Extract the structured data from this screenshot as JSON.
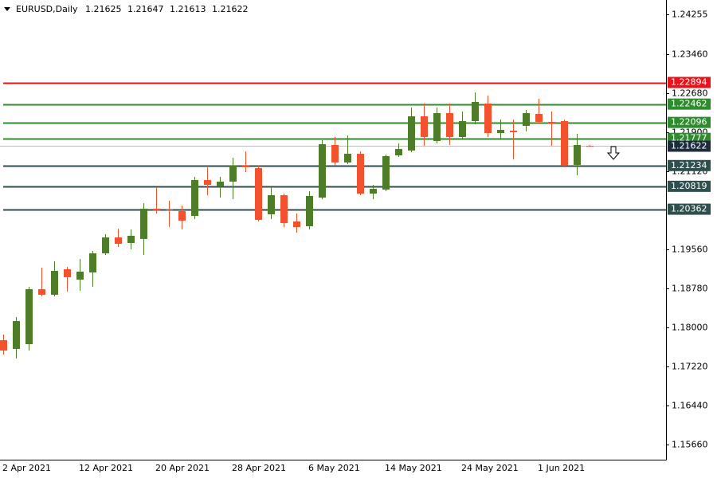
{
  "chart_data": {
    "type": "candlestick",
    "symbol": "EURUSD,Daily",
    "categories": [
      "2 Apr 2021",
      null,
      null,
      null,
      null,
      null,
      "12 Apr 2021",
      null,
      null,
      null,
      null,
      null,
      "20 Apr 2021",
      null,
      null,
      null,
      null,
      null,
      "28 Apr 2021",
      null,
      null,
      null,
      null,
      null,
      "6 May 2021",
      null,
      null,
      null,
      null,
      null,
      "14 May 2021",
      null,
      null,
      null,
      null,
      null,
      "24 May 2021",
      null,
      null,
      null,
      null,
      null,
      "1 Jun 2021",
      null,
      null,
      null,
      null
    ],
    "open": [
      1.17745,
      1.1757,
      1.17665,
      1.18764,
      1.18652,
      1.19162,
      1.18955,
      1.19098,
      1.1948,
      1.19798,
      1.19687,
      1.19767,
      1.20372,
      1.20356,
      1.20324,
      1.20228,
      1.20945,
      1.20817,
      1.20913,
      1.21231,
      1.21183,
      1.2026,
      1.20642,
      1.20117,
      1.20021,
      1.20594,
      1.21645,
      1.21295,
      1.2147,
      1.20674,
      1.20754,
      1.21438,
      1.21534,
      1.22218,
      1.21725,
      1.22282,
      1.21804,
      1.22122,
      1.22473,
      1.21884,
      1.21931,
      1.22027,
      1.22266,
      1.22107,
      1.22122,
      1.21247,
      1.21625
    ],
    "high": [
      1.17856,
      1.18207,
      1.18812,
      1.19194,
      1.19321,
      1.19209,
      1.19369,
      1.19528,
      1.19862,
      1.19974,
      1.19958,
      1.20483,
      1.20801,
      1.20531,
      1.20435,
      1.21008,
      1.21199,
      1.21008,
      1.2139,
      1.21518,
      1.21231,
      1.20801,
      1.20674,
      1.20276,
      1.20722,
      1.2174,
      1.21804,
      1.21836,
      1.21518,
      1.20849,
      1.21454,
      1.21677,
      1.22393,
      1.22473,
      1.22393,
      1.22473,
      1.22314,
      1.22696,
      1.22632,
      1.22154,
      1.22154,
      1.22345,
      1.22568,
      1.22314,
      1.22154,
      1.21868,
      1.21647
    ],
    "low": [
      1.17459,
      1.17379,
      1.17538,
      1.18621,
      1.18621,
      1.18716,
      1.18732,
      1.18812,
      1.19448,
      1.19607,
      1.1956,
      1.19448,
      1.20276,
      1.20005,
      1.19958,
      1.20165,
      1.20642,
      1.20594,
      1.20563,
      1.21104,
      1.20117,
      1.20165,
      1.20005,
      1.19894,
      1.19958,
      1.20563,
      1.21231,
      1.21263,
      1.20642,
      1.20563,
      1.20722,
      1.21406,
      1.21502,
      1.21629,
      1.21677,
      1.21645,
      1.21756,
      1.22059,
      1.21804,
      1.21756,
      1.21358,
      1.21916,
      1.22075,
      1.21629,
      1.21199,
      1.2104,
      1.21613
    ],
    "close": [
      1.17538,
      1.18127,
      1.18764,
      1.18652,
      1.1913,
      1.19003,
      1.19114,
      1.1948,
      1.19798,
      1.19671,
      1.1983,
      1.20372,
      1.2034,
      1.2034,
      1.20133,
      1.20945,
      1.20849,
      1.20913,
      1.21231,
      1.21199,
      1.20149,
      1.20642,
      1.20085,
      1.20005,
      1.20626,
      1.21661,
      1.21295,
      1.2147,
      1.20674,
      1.20769,
      1.21422,
      1.21565,
      1.22218,
      1.21804,
      1.22282,
      1.21804,
      1.22122,
      1.22505,
      1.21884,
      1.21947,
      1.219,
      1.22282,
      1.22107,
      1.22075,
      1.21231,
      1.21645,
      1.21622
    ],
    "up_color": "#4e7d2a",
    "down_color": "#f4522c",
    "ylim": [
      1.15357,
      1.24542
    ],
    "yticks": [
      {
        "value": 1.1566,
        "label": "1.15660"
      },
      {
        "value": 1.1644,
        "label": "1.16440"
      },
      {
        "value": 1.1722,
        "label": "1.17220"
      },
      {
        "value": 1.18,
        "label": "1.18000"
      },
      {
        "value": 1.1878,
        "label": "1.18780"
      },
      {
        "value": 1.1956,
        "label": "1.19560"
      },
      {
        "value": 1.2112,
        "label": "1.21120"
      },
      {
        "value": 1.219,
        "label": "1.21900"
      },
      {
        "value": 1.2268,
        "label": "1.22680"
      },
      {
        "value": 1.2346,
        "label": "1.23460"
      },
      1.24255
    ],
    "levels": [
      {
        "value": 1.22894,
        "color": "#e8141c"
      },
      {
        "value": 1.22462,
        "color": "#2e8b2e"
      },
      {
        "value": 1.22096,
        "color": "#2e8b2e"
      },
      {
        "value": 1.21777,
        "color": "#2e8b2e"
      },
      {
        "value": 1.21234,
        "color": "#2f4f4f"
      },
      {
        "value": 1.20819,
        "color": "#2f4f4f"
      },
      {
        "value": 1.20362,
        "color": "#2f4f4f"
      }
    ],
    "price_line_color": "#c0c0c0",
    "price_label_color": "#1d2b3c"
  }
}
